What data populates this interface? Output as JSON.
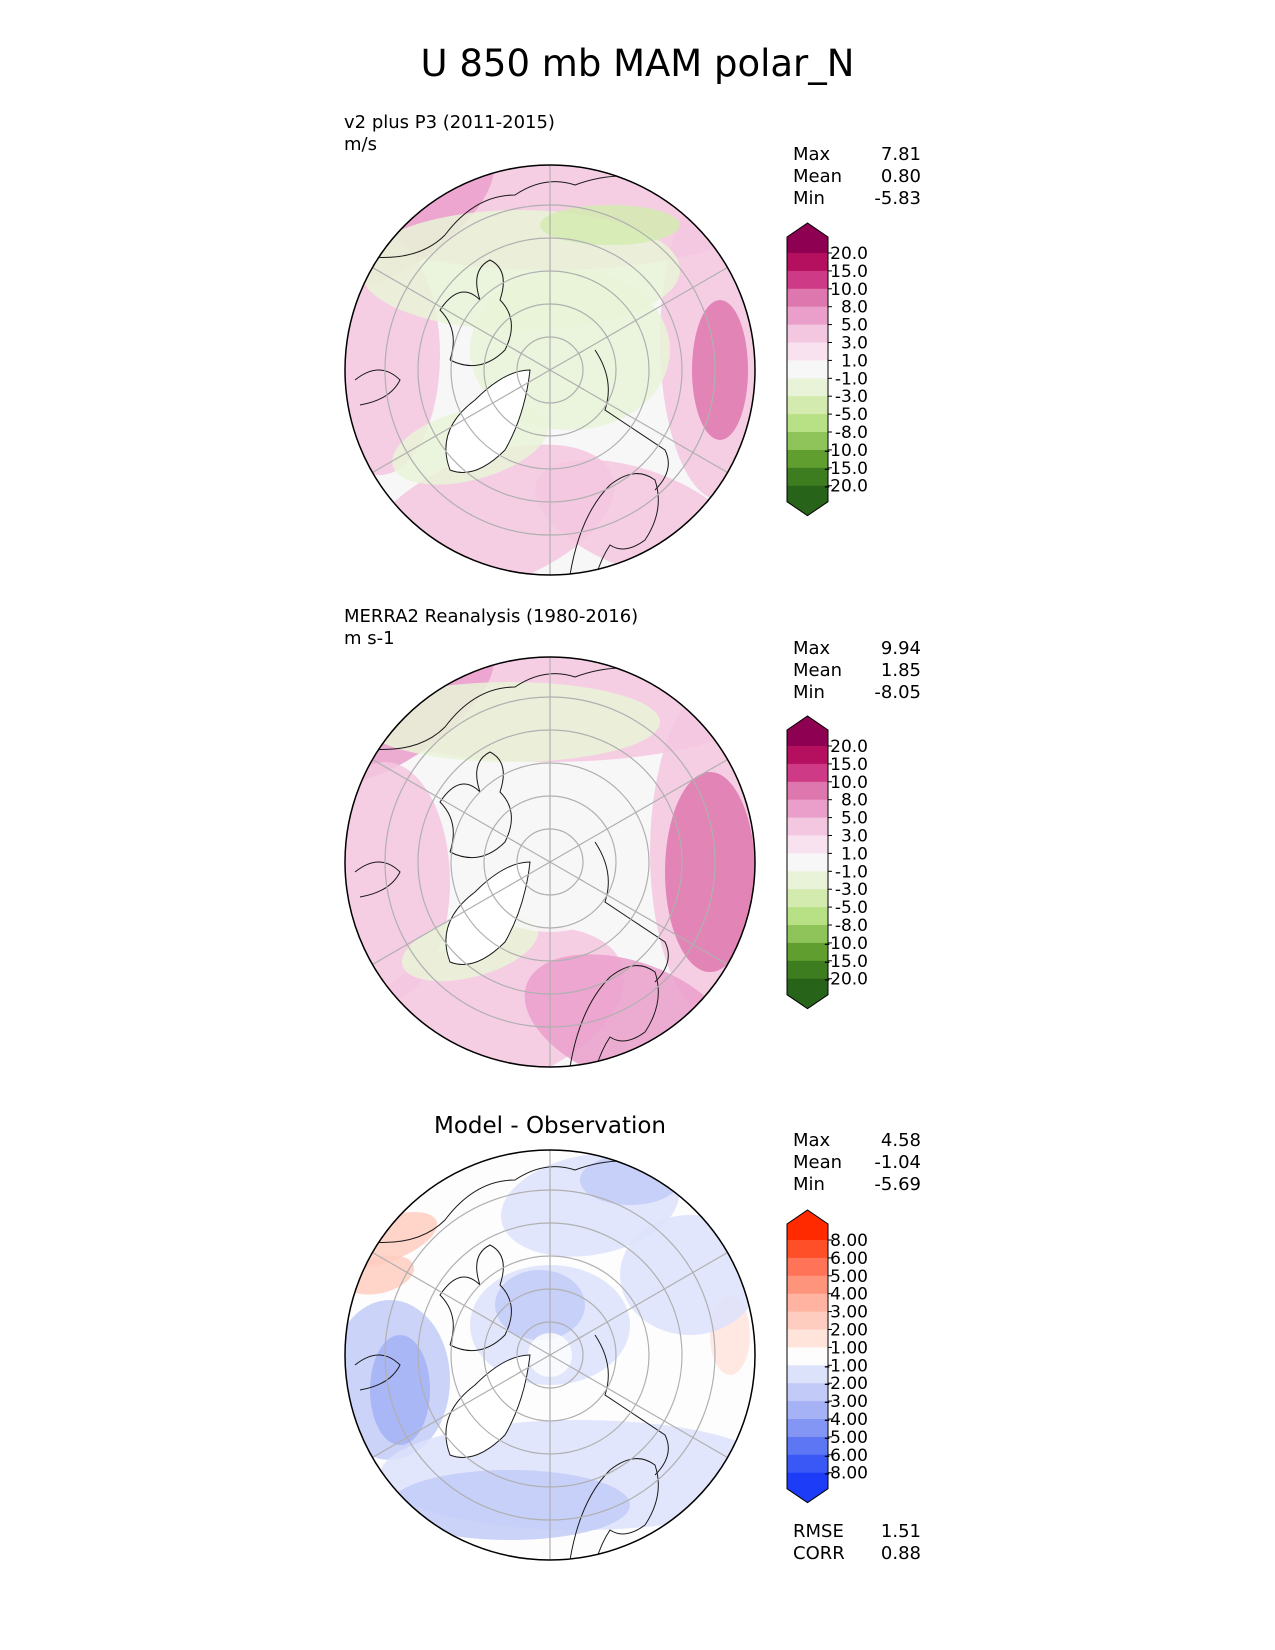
{
  "title": "U 850 mb MAM polar_N",
  "colors": {
    "map_bg": "#ffffff",
    "grid": "#b0b0b0",
    "coast": "#1a1a1a"
  },
  "chart_data": [
    {
      "type": "heatmap",
      "projection": "north-polar-stereographic",
      "label": "v2 plus P3 (2011-2015)",
      "units": "m/s",
      "stats": {
        "max": "7.81",
        "mean": "0.80",
        "min": "-5.83"
      },
      "colorbar": {
        "ticks": [
          "20.0",
          "15.0",
          "10.0",
          "8.0",
          "5.0",
          "3.0",
          "1.0",
          "-1.0",
          "-3.0",
          "-5.0",
          "-8.0",
          "-10.0",
          "-15.0",
          "-20.0"
        ],
        "colors": [
          "#8e0152",
          "#b5105f",
          "#cf3a86",
          "#de77ae",
          "#ea9fcb",
          "#f4c7e1",
          "#f8e2ef",
          "#f7f7f7",
          "#e9f3d7",
          "#d4ebb0",
          "#b8e186",
          "#8fc45a",
          "#5f9e2f",
          "#3e7d1f",
          "#276419"
        ]
      }
    },
    {
      "type": "heatmap",
      "projection": "north-polar-stereographic",
      "label": "MERRA2 Reanalysis (1980-2016)",
      "units": "m s-1",
      "stats": {
        "max": "9.94",
        "mean": "1.85",
        "min": "-8.05"
      },
      "colorbar": {
        "ticks": [
          "20.0",
          "15.0",
          "10.0",
          "8.0",
          "5.0",
          "3.0",
          "1.0",
          "-1.0",
          "-3.0",
          "-5.0",
          "-8.0",
          "-10.0",
          "-15.0",
          "-20.0"
        ],
        "colors": [
          "#8e0152",
          "#b5105f",
          "#cf3a86",
          "#de77ae",
          "#ea9fcb",
          "#f4c7e1",
          "#f8e2ef",
          "#f7f7f7",
          "#e9f3d7",
          "#d4ebb0",
          "#b8e186",
          "#8fc45a",
          "#5f9e2f",
          "#3e7d1f",
          "#276419"
        ]
      }
    },
    {
      "type": "heatmap",
      "projection": "north-polar-stereographic",
      "title": "Model - Observation",
      "stats": {
        "max": "4.58",
        "mean": "-1.04",
        "min": "-5.69"
      },
      "metrics": {
        "rmse": "1.51",
        "corr": "0.88"
      },
      "colorbar": {
        "ticks": [
          "8.00",
          "6.00",
          "5.00",
          "4.00",
          "3.00",
          "2.00",
          "1.00",
          "-1.00",
          "-2.00",
          "-3.00",
          "-4.00",
          "-5.00",
          "-6.00",
          "-8.00"
        ],
        "colors": [
          "#ff2a00",
          "#ff4f28",
          "#ff7358",
          "#ff947c",
          "#ffb3a0",
          "#ffcdc0",
          "#ffe4dc",
          "#fdfdfd",
          "#dde2fb",
          "#c2cbf8",
          "#a5b2f6",
          "#8496f4",
          "#5d76f4",
          "#3958f5",
          "#1c3cf8"
        ]
      }
    }
  ],
  "stat_labels": {
    "max": "Max",
    "mean": "Mean",
    "min": "Min",
    "rmse": "RMSE",
    "corr": "CORR"
  }
}
